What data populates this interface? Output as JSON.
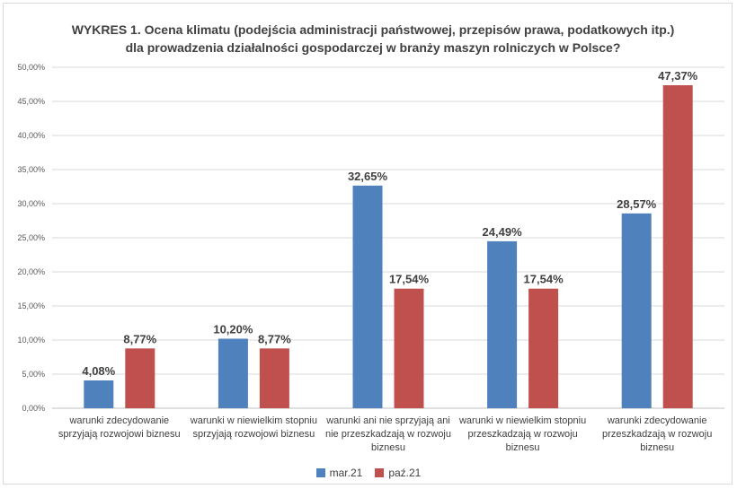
{
  "chart_data": {
    "type": "bar",
    "title": "WYKRES 1. Ocena klimatu (podejścia administracji państwowej, przepisów prawa, podatkowych itp.) dla prowadzenia działalności gospodarczej w branży maszyn rolniczych w Polsce?",
    "categories": [
      "warunki zdecydowanie sprzyjają rozwojowi biznesu",
      "warunki w niewielkim stopniu sprzyjają rozwojowi biznesu",
      "warunki ani nie sprzyjają ani nie przeszkadzają w rozwoju biznesu",
      "warunki w niewielkim stopniu przeszkadzają w rozwoju biznesu",
      "warunki zdecydowanie przeszkadzają w rozwoju biznesu"
    ],
    "series": [
      {
        "name": "mar.21",
        "color": "#4f81bd",
        "values": [
          4.08,
          10.2,
          32.65,
          24.49,
          28.57
        ],
        "labels": [
          "4,08%",
          "10,20%",
          "32,65%",
          "24,49%",
          "28,57%"
        ]
      },
      {
        "name": "paź.21",
        "color": "#c0504d",
        "values": [
          8.77,
          8.77,
          17.54,
          17.54,
          47.37
        ],
        "labels": [
          "8,77%",
          "8,77%",
          "17,54%",
          "17,54%",
          "47,37%"
        ]
      }
    ],
    "y_ticks": [
      "0,00%",
      "5,00%",
      "10,00%",
      "15,00%",
      "20,00%",
      "25,00%",
      "30,00%",
      "35,00%",
      "40,00%",
      "45,00%",
      "50,00%"
    ],
    "ylim": [
      0,
      50
    ],
    "xlabel": "",
    "ylabel": "",
    "grid": true,
    "legend_position": "bottom"
  }
}
